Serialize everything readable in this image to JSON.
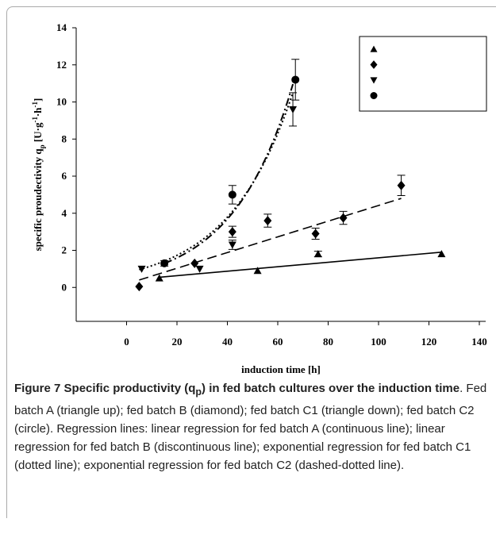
{
  "chart_data": {
    "type": "scatter",
    "ylabel": {
      "a": "specific proudectivity q",
      "sub": "p",
      "b": " [U·g",
      "sup1": "-1",
      "c": "·h",
      "sup2": "-1",
      "d": "]"
    },
    "xlabel": "induction time [h]",
    "xlim": [
      -20,
      140
    ],
    "ylim": [
      -2,
      14
    ],
    "xticks": [
      0,
      20,
      40,
      60,
      80,
      100,
      120,
      140
    ],
    "yticks": [
      0,
      2,
      4,
      6,
      8,
      10,
      12,
      14
    ],
    "legend": "upper right",
    "series": [
      {
        "name": "fed batch A",
        "marker": "triangle-up",
        "color": "#000000",
        "x": [
          13,
          52,
          76,
          125
        ],
        "values": [
          0.5,
          0.9,
          1.8,
          1.8
        ],
        "errors": [
          null,
          null,
          0.15,
          null
        ],
        "fit": {
          "kind": "linear",
          "style": "solid",
          "x": [
            13,
            125
          ],
          "y": [
            0.55,
            1.9
          ]
        }
      },
      {
        "name": "fed batch B",
        "marker": "diamond",
        "color": "#000000",
        "x": [
          5,
          27,
          42,
          56,
          75,
          86,
          109
        ],
        "values": [
          0.05,
          1.3,
          3.0,
          3.6,
          2.9,
          3.75,
          5.5
        ],
        "errors": [
          null,
          null,
          0.3,
          0.35,
          0.3,
          0.35,
          0.55
        ],
        "fit": {
          "kind": "linear",
          "style": "dashed",
          "x": [
            5,
            109
          ],
          "y": [
            0.4,
            4.8
          ]
        }
      },
      {
        "name": "fed batch C1",
        "marker": "triangle-down",
        "color": "#000000",
        "x": [
          6,
          29,
          42,
          66
        ],
        "values": [
          1.0,
          1.0,
          2.3,
          9.6
        ],
        "errors": [
          null,
          null,
          0.25,
          0.9
        ],
        "fit": {
          "kind": "exp",
          "style": "dotted",
          "a": 0.79,
          "b": 0.0392,
          "x": [
            5,
            66
          ]
        }
      },
      {
        "name": "fed batch C2",
        "marker": "circle",
        "color": "#000000",
        "x": [
          15,
          42,
          67
        ],
        "values": [
          1.3,
          5.0,
          11.2
        ],
        "errors": [
          0.15,
          0.5,
          1.1
        ],
        "fit": {
          "kind": "exp",
          "style": "dashdot",
          "a": 0.69,
          "b": 0.0419,
          "x": [
            15,
            66
          ]
        }
      }
    ]
  },
  "caption": {
    "label": "Figure 7",
    "title_a": " Specific productivity (q",
    "title_sub": "p",
    "title_b": ") in fed batch cultures over the induction time",
    "body": ". Fed batch A (triangle up); fed batch B (diamond); fed batch C1 (triangle down); fed batch C2 (circle). Regression lines: linear regression for fed batch A (continuous line); linear regression for fed batch B (discontinuous line); exponential regression for fed batch C1 (dotted line); exponential regression for fed batch C2 (dashed-dotted line)."
  }
}
